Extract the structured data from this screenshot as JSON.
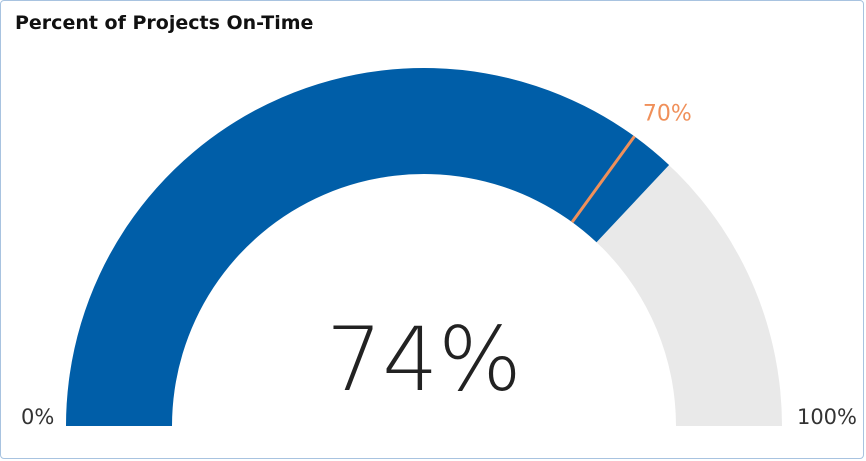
{
  "chart_data": {
    "type": "gauge",
    "title": "Percent of Projects On-Time",
    "value": 0.74,
    "value_label": "74%",
    "target": 0.7,
    "target_label": "70%",
    "min_label": "0%",
    "max_label": "100%",
    "colors": {
      "fill": "#005ea8",
      "track": "#e9e9e9",
      "target": "#f0905a",
      "text": "#222222"
    }
  }
}
